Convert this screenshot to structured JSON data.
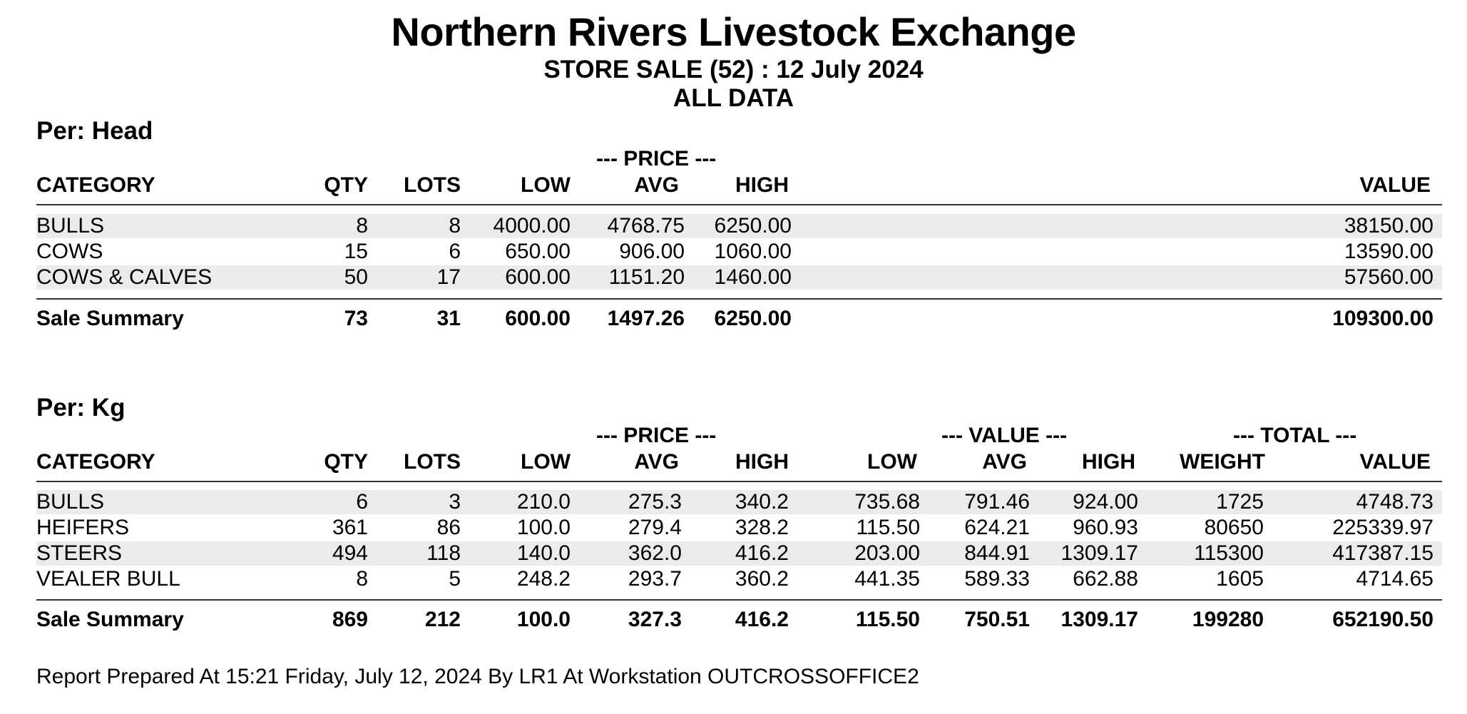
{
  "header": {
    "title": "Northern Rivers Livestock Exchange",
    "subtitle": "STORE SALE (52)  :  12 July 2024",
    "scope": "ALL DATA"
  },
  "per_head": {
    "section_label": "Per: Head",
    "price_group": "---  PRICE  ---",
    "columns": {
      "category": "CATEGORY",
      "qty": "QTY",
      "lots": "LOTS",
      "low": "LOW",
      "avg": "AVG",
      "high": "HIGH",
      "value": "VALUE"
    },
    "rows": [
      {
        "category": "BULLS",
        "qty": "8",
        "lots": "8",
        "low": "4000.00",
        "avg": "4768.75",
        "high": "6250.00",
        "value": "38150.00"
      },
      {
        "category": "COWS",
        "qty": "15",
        "lots": "6",
        "low": "650.00",
        "avg": "906.00",
        "high": "1060.00",
        "value": "13590.00"
      },
      {
        "category": "COWS & CALVES",
        "qty": "50",
        "lots": "17",
        "low": "600.00",
        "avg": "1151.20",
        "high": "1460.00",
        "value": "57560.00"
      }
    ],
    "summary": {
      "category": "Sale Summary",
      "qty": "73",
      "lots": "31",
      "low": "600.00",
      "avg": "1497.26",
      "high": "6250.00",
      "value": "109300.00"
    }
  },
  "per_kg": {
    "section_label": "Per: Kg",
    "price_group": "---  PRICE  ---",
    "value_group": "---  VALUE  ---",
    "total_group": "---  TOTAL  ---",
    "columns": {
      "category": "CATEGORY",
      "qty": "QTY",
      "lots": "LOTS",
      "low": "LOW",
      "avg": "AVG",
      "high": "HIGH",
      "vlow": "LOW",
      "vavg": "AVG",
      "vhigh": "HIGH",
      "weight": "WEIGHT",
      "value": "VALUE"
    },
    "rows": [
      {
        "category": "BULLS",
        "qty": "6",
        "lots": "3",
        "low": "210.0",
        "avg": "275.3",
        "high": "340.2",
        "vlow": "735.68",
        "vavg": "791.46",
        "vhigh": "924.00",
        "weight": "1725",
        "value": "4748.73"
      },
      {
        "category": "HEIFERS",
        "qty": "361",
        "lots": "86",
        "low": "100.0",
        "avg": "279.4",
        "high": "328.2",
        "vlow": "115.50",
        "vavg": "624.21",
        "vhigh": "960.93",
        "weight": "80650",
        "value": "225339.97"
      },
      {
        "category": "STEERS",
        "qty": "494",
        "lots": "118",
        "low": "140.0",
        "avg": "362.0",
        "high": "416.2",
        "vlow": "203.00",
        "vavg": "844.91",
        "vhigh": "1309.17",
        "weight": "115300",
        "value": "417387.15"
      },
      {
        "category": "VEALER BULL",
        "qty": "8",
        "lots": "5",
        "low": "248.2",
        "avg": "293.7",
        "high": "360.2",
        "vlow": "441.35",
        "vavg": "589.33",
        "vhigh": "662.88",
        "weight": "1605",
        "value": "4714.65"
      }
    ],
    "summary": {
      "category": "Sale Summary",
      "qty": "869",
      "lots": "212",
      "low": "100.0",
      "avg": "327.3",
      "high": "416.2",
      "vlow": "115.50",
      "vavg": "750.51",
      "vhigh": "1309.17",
      "weight": "199280",
      "value": "652190.50"
    }
  },
  "footer": {
    "prepared": "Report Prepared At 15:21  Friday, July 12, 2024 By LR1 At Workstation OUTCROSSOFFICE2"
  }
}
